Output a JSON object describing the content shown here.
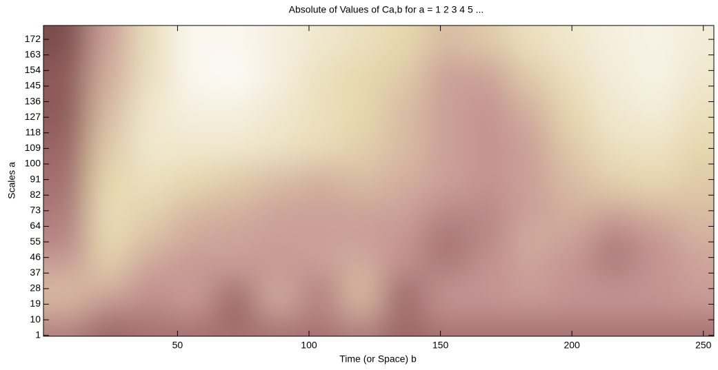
{
  "chart_data": {
    "type": "heatmap",
    "title": "Absolute of Values of Ca,b for a =  1 2 3 4 5 ...",
    "xlabel": "Time (or Space) b",
    "ylabel": "Scales a",
    "xlim": [
      -1,
      254
    ],
    "ylim": [
      0.5,
      180
    ],
    "xticks": [
      50,
      100,
      150,
      200,
      250
    ],
    "yticks": [
      1,
      10,
      19,
      28,
      37,
      46,
      55,
      64,
      73,
      82,
      91,
      100,
      109,
      118,
      127,
      136,
      145,
      154,
      163,
      172
    ],
    "colormap": [
      "#3a1c1c",
      "#8e5a5a",
      "#c49292",
      "#e6d8ae",
      "#ffffff"
    ],
    "x": [
      8,
      24,
      40,
      56,
      72,
      88,
      104,
      120,
      136,
      152,
      168,
      184,
      200,
      216,
      232,
      248
    ],
    "y": [
      172,
      150,
      130,
      110,
      90,
      70,
      55,
      40,
      28,
      15,
      5
    ],
    "values": [
      [
        0.2,
        0.55,
        0.8,
        0.95,
        0.95,
        0.9,
        0.85,
        0.8,
        0.75,
        0.65,
        0.7,
        0.8,
        0.85,
        0.9,
        0.92,
        0.88
      ],
      [
        0.25,
        0.6,
        0.8,
        0.95,
        0.97,
        0.9,
        0.8,
        0.75,
        0.7,
        0.55,
        0.55,
        0.7,
        0.8,
        0.88,
        0.92,
        0.85
      ],
      [
        0.25,
        0.65,
        0.85,
        0.9,
        0.9,
        0.85,
        0.8,
        0.75,
        0.65,
        0.55,
        0.5,
        0.6,
        0.75,
        0.85,
        0.88,
        0.8
      ],
      [
        0.3,
        0.7,
        0.85,
        0.85,
        0.85,
        0.82,
        0.78,
        0.72,
        0.65,
        0.55,
        0.5,
        0.55,
        0.7,
        0.8,
        0.82,
        0.75
      ],
      [
        0.35,
        0.75,
        0.8,
        0.75,
        0.7,
        0.65,
        0.6,
        0.65,
        0.6,
        0.55,
        0.5,
        0.55,
        0.65,
        0.72,
        0.75,
        0.7
      ],
      [
        0.4,
        0.78,
        0.72,
        0.62,
        0.6,
        0.55,
        0.55,
        0.55,
        0.55,
        0.45,
        0.45,
        0.55,
        0.6,
        0.55,
        0.6,
        0.65
      ],
      [
        0.45,
        0.75,
        0.65,
        0.58,
        0.55,
        0.55,
        0.55,
        0.55,
        0.5,
        0.35,
        0.45,
        0.6,
        0.55,
        0.4,
        0.5,
        0.6
      ],
      [
        0.55,
        0.7,
        0.55,
        0.5,
        0.55,
        0.5,
        0.55,
        0.6,
        0.5,
        0.4,
        0.5,
        0.55,
        0.5,
        0.4,
        0.5,
        0.55
      ],
      [
        0.65,
        0.6,
        0.5,
        0.55,
        0.35,
        0.6,
        0.4,
        0.65,
        0.3,
        0.5,
        0.5,
        0.55,
        0.5,
        0.5,
        0.5,
        0.55
      ],
      [
        0.6,
        0.45,
        0.45,
        0.5,
        0.3,
        0.55,
        0.45,
        0.6,
        0.35,
        0.5,
        0.5,
        0.5,
        0.5,
        0.5,
        0.5,
        0.5
      ],
      [
        0.4,
        0.3,
        0.35,
        0.35,
        0.35,
        0.35,
        0.35,
        0.4,
        0.3,
        0.35,
        0.35,
        0.35,
        0.35,
        0.35,
        0.35,
        0.35
      ]
    ]
  }
}
